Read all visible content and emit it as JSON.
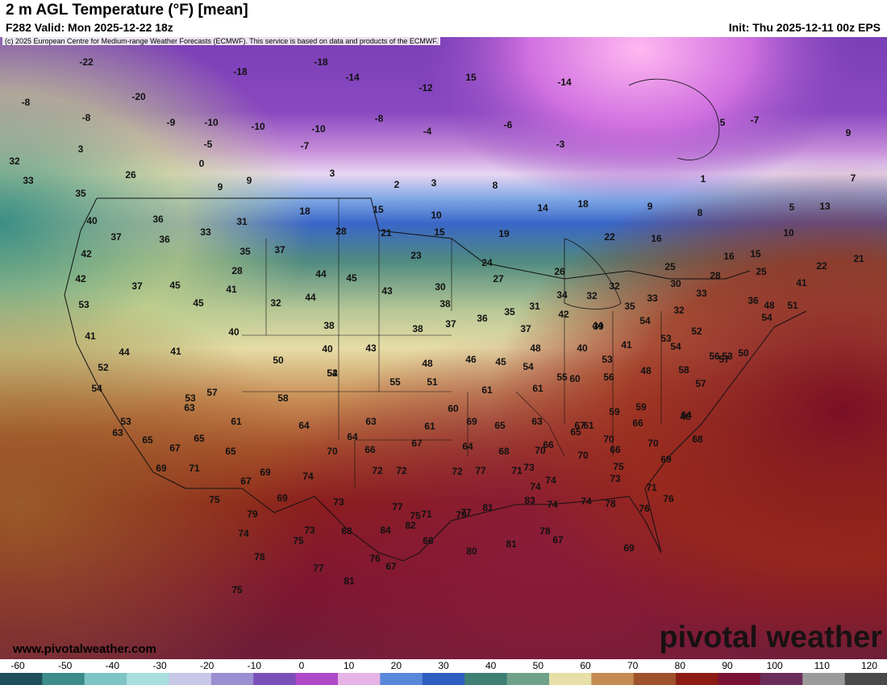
{
  "header": {
    "title": "2 m AGL Temperature (°F) [mean]",
    "valid": "F282 Valid: Mon 2025-12-22 18z",
    "init": "Init: Thu 2025-12-11 00z EPS"
  },
  "copyright": "(c) 2025 European Centre for Medium-range Weather Forecasts (ECMWF). This service is based on data and products of the ECMWF.",
  "website": "www.pivotalweather.com",
  "brand": "pivotal weather",
  "legend": {
    "ticks": [
      "-60",
      "-50",
      "-40",
      "-30",
      "-20",
      "-10",
      "0",
      "10",
      "20",
      "30",
      "40",
      "50",
      "60",
      "70",
      "80",
      "90",
      "100",
      "110",
      "120"
    ],
    "colors": [
      "#1e4f5a",
      "#3c8c8c",
      "#7fc4c4",
      "#a9dede",
      "#c7c7e8",
      "#9a8fd0",
      "#7b4fb8",
      "#b049c8",
      "#e6b3e6",
      "#5a88d8",
      "#2e5fbf",
      "#3f7f74",
      "#6fa088",
      "#e6e0a8",
      "#c48c52",
      "#a0522d",
      "#8b1c14",
      "#7a1236",
      "#6a2d5a",
      "#9a9a9a",
      "#4a4a4a"
    ]
  },
  "map_labels": [
    {
      "t": "-22"
    },
    {
      "t": "-18"
    },
    {
      "t": "-14"
    },
    {
      "t": "15"
    },
    {
      "t": "-14"
    },
    {
      "t": "-18"
    },
    {
      "t": "-12"
    },
    {
      "t": "-8"
    },
    {
      "t": "-20"
    },
    {
      "t": "-8"
    },
    {
      "t": "-9"
    },
    {
      "t": "-10"
    },
    {
      "t": "-10"
    },
    {
      "t": "-10"
    },
    {
      "t": "-8"
    },
    {
      "t": "-6"
    },
    {
      "t": "5"
    },
    {
      "t": "-7"
    },
    {
      "t": "9"
    },
    {
      "t": "3"
    },
    {
      "t": "-5"
    },
    {
      "t": "-7"
    },
    {
      "t": "-4"
    },
    {
      "t": "-3"
    },
    {
      "t": "32"
    },
    {
      "t": "0"
    },
    {
      "t": "26"
    },
    {
      "t": "33"
    },
    {
      "t": "9"
    },
    {
      "t": "9"
    },
    {
      "t": "3"
    },
    {
      "t": "2"
    },
    {
      "t": "3"
    },
    {
      "t": "8"
    },
    {
      "t": "7"
    },
    {
      "t": "1"
    },
    {
      "t": "35"
    },
    {
      "t": "18"
    },
    {
      "t": "15"
    },
    {
      "t": "10"
    },
    {
      "t": "14"
    },
    {
      "t": "18"
    },
    {
      "t": "9"
    },
    {
      "t": "8"
    },
    {
      "t": "5"
    },
    {
      "t": "13"
    },
    {
      "t": "40"
    },
    {
      "t": "36"
    },
    {
      "t": "31"
    },
    {
      "t": "28"
    },
    {
      "t": "21"
    },
    {
      "t": "15"
    },
    {
      "t": "19"
    },
    {
      "t": "22"
    },
    {
      "t": "16"
    },
    {
      "t": "10"
    },
    {
      "t": "37"
    },
    {
      "t": "36"
    },
    {
      "t": "33"
    },
    {
      "t": "23"
    },
    {
      "t": "16"
    },
    {
      "t": "15"
    },
    {
      "t": "42"
    },
    {
      "t": "35"
    },
    {
      "t": "37"
    },
    {
      "t": "24"
    },
    {
      "t": "25"
    },
    {
      "t": "25"
    },
    {
      "t": "22"
    },
    {
      "t": "21"
    },
    {
      "t": "42"
    },
    {
      "t": "45"
    },
    {
      "t": "44"
    },
    {
      "t": "45"
    },
    {
      "t": "27"
    },
    {
      "t": "26"
    },
    {
      "t": "32"
    },
    {
      "t": "30"
    },
    {
      "t": "28"
    },
    {
      "t": "28"
    },
    {
      "t": "37"
    },
    {
      "t": "41"
    },
    {
      "t": "43"
    },
    {
      "t": "30"
    },
    {
      "t": "33"
    },
    {
      "t": "34"
    },
    {
      "t": "32"
    },
    {
      "t": "41"
    },
    {
      "t": "45"
    },
    {
      "t": "32"
    },
    {
      "t": "44"
    },
    {
      "t": "38"
    },
    {
      "t": "35"
    },
    {
      "t": "31"
    },
    {
      "t": "35"
    },
    {
      "t": "33"
    },
    {
      "t": "32"
    },
    {
      "t": "36"
    },
    {
      "t": "48"
    },
    {
      "t": "51"
    },
    {
      "t": "53"
    },
    {
      "t": "41"
    },
    {
      "t": "40"
    },
    {
      "t": "38"
    },
    {
      "t": "37"
    },
    {
      "t": "36"
    },
    {
      "t": "37"
    },
    {
      "t": "42"
    },
    {
      "t": "39"
    },
    {
      "t": "54"
    },
    {
      "t": "54"
    },
    {
      "t": "44"
    },
    {
      "t": "41"
    },
    {
      "t": "40"
    },
    {
      "t": "43"
    },
    {
      "t": "38"
    },
    {
      "t": "44"
    },
    {
      "t": "53"
    },
    {
      "t": "52"
    },
    {
      "t": "56"
    },
    {
      "t": "50"
    },
    {
      "t": "50"
    },
    {
      "t": "52"
    },
    {
      "t": "48"
    },
    {
      "t": "46"
    },
    {
      "t": "45"
    },
    {
      "t": "48"
    },
    {
      "t": "40"
    },
    {
      "t": "41"
    },
    {
      "t": "53"
    },
    {
      "t": "54"
    },
    {
      "t": "53"
    },
    {
      "t": "52"
    },
    {
      "t": "54"
    },
    {
      "t": "53"
    },
    {
      "t": "55"
    },
    {
      "t": "51"
    },
    {
      "t": "54"
    },
    {
      "t": "55"
    },
    {
      "t": "56"
    },
    {
      "t": "48"
    },
    {
      "t": "58"
    },
    {
      "t": "57"
    },
    {
      "t": "57"
    },
    {
      "t": "54"
    },
    {
      "t": "57"
    },
    {
      "t": "58"
    },
    {
      "t": "61"
    },
    {
      "t": "61"
    },
    {
      "t": "60"
    },
    {
      "t": "59"
    },
    {
      "t": "59"
    },
    {
      "t": "48"
    },
    {
      "t": "53"
    },
    {
      "t": "63"
    },
    {
      "t": "61"
    },
    {
      "t": "64"
    },
    {
      "t": "63"
    },
    {
      "t": "61"
    },
    {
      "t": "60"
    },
    {
      "t": "69"
    },
    {
      "t": "65"
    },
    {
      "t": "63"
    },
    {
      "t": "65"
    },
    {
      "t": "66"
    },
    {
      "t": "64"
    },
    {
      "t": "63"
    },
    {
      "t": "65"
    },
    {
      "t": "65"
    },
    {
      "t": "64"
    },
    {
      "t": "67"
    },
    {
      "t": "67"
    },
    {
      "t": "61"
    },
    {
      "t": "66"
    },
    {
      "t": "66"
    },
    {
      "t": "68"
    },
    {
      "t": "67"
    },
    {
      "t": "65"
    },
    {
      "t": "69"
    },
    {
      "t": "70"
    },
    {
      "t": "66"
    },
    {
      "t": "64"
    },
    {
      "t": "68"
    },
    {
      "t": "70"
    },
    {
      "t": "70"
    },
    {
      "t": "70"
    },
    {
      "t": "70"
    },
    {
      "t": "69"
    },
    {
      "t": "69"
    },
    {
      "t": "71"
    },
    {
      "t": "75"
    },
    {
      "t": "67"
    },
    {
      "t": "69"
    },
    {
      "t": "74"
    },
    {
      "t": "73"
    },
    {
      "t": "72"
    },
    {
      "t": "72"
    },
    {
      "t": "72"
    },
    {
      "t": "77"
    },
    {
      "t": "71"
    },
    {
      "t": "73"
    },
    {
      "t": "74"
    },
    {
      "t": "73"
    },
    {
      "t": "71"
    },
    {
      "t": "76"
    },
    {
      "t": "79"
    },
    {
      "t": "75"
    },
    {
      "t": "79"
    },
    {
      "t": "74"
    },
    {
      "t": "75"
    },
    {
      "t": "74"
    },
    {
      "t": "73"
    },
    {
      "t": "68"
    },
    {
      "t": "77"
    },
    {
      "t": "71"
    },
    {
      "t": "77"
    },
    {
      "t": "81"
    },
    {
      "t": "83"
    },
    {
      "t": "74"
    },
    {
      "t": "74"
    },
    {
      "t": "78"
    },
    {
      "t": "76"
    },
    {
      "t": "78"
    },
    {
      "t": "75"
    },
    {
      "t": "84"
    },
    {
      "t": "82"
    },
    {
      "t": "81"
    },
    {
      "t": "67"
    },
    {
      "t": "75"
    },
    {
      "t": "77"
    },
    {
      "t": "81"
    },
    {
      "t": "76"
    },
    {
      "t": "67"
    },
    {
      "t": "66"
    },
    {
      "t": "80"
    },
    {
      "t": "78"
    },
    {
      "t": "69"
    }
  ]
}
